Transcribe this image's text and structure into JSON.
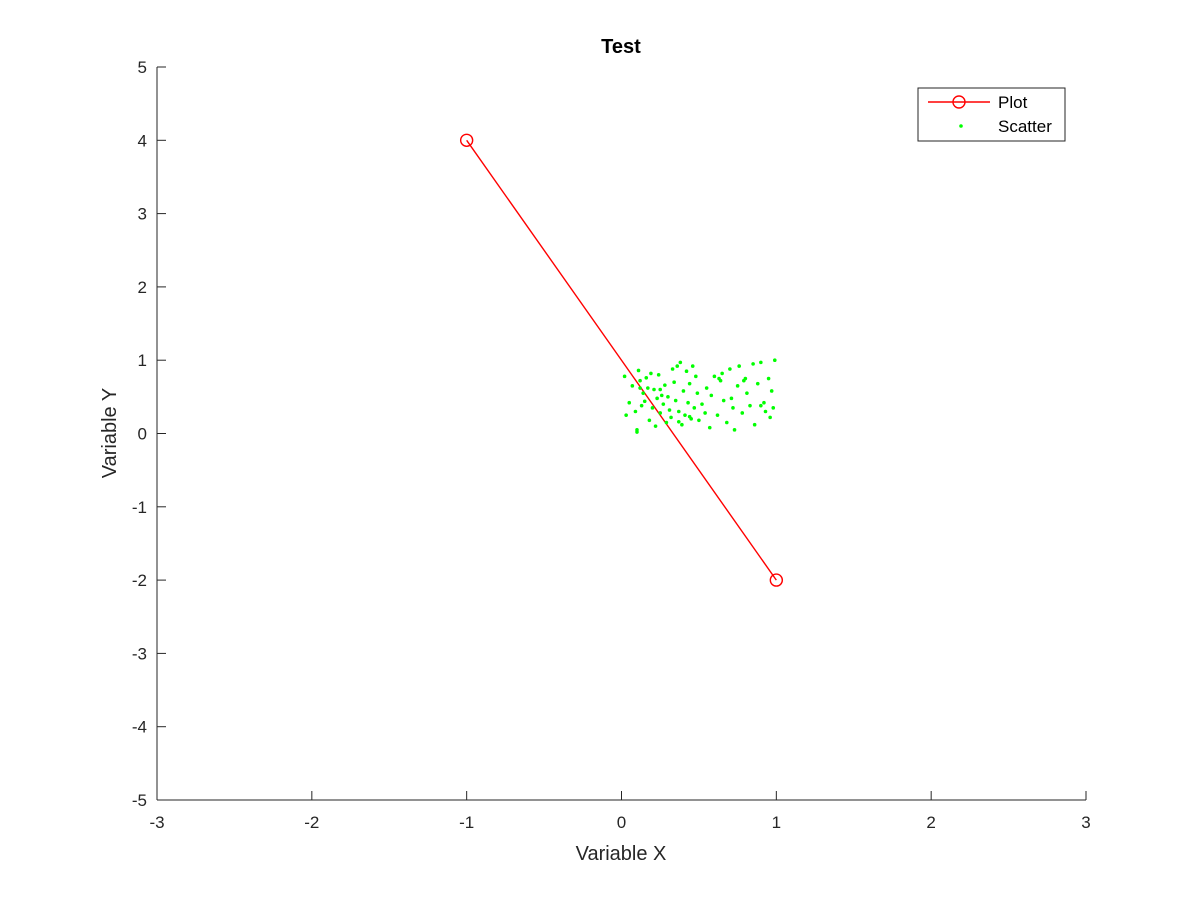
{
  "chart_data": {
    "type": "line",
    "title": "Test",
    "xlabel": "Variable X",
    "ylabel": "Variable Y",
    "xlim": [
      -3,
      3
    ],
    "ylim": [
      -5,
      5
    ],
    "xticks": [
      -3,
      -2,
      -1,
      0,
      1,
      2,
      3
    ],
    "yticks": [
      -5,
      -4,
      -3,
      -2,
      -1,
      0,
      1,
      2,
      3,
      4,
      5
    ],
    "xtick_labels": [
      "-3",
      "-2",
      "-1",
      "0",
      "1",
      "2",
      "3"
    ],
    "ytick_labels": [
      "-5",
      "-4",
      "-3",
      "-2",
      "-1",
      "0",
      "1",
      "2",
      "3",
      "4",
      "5"
    ],
    "grid": false,
    "legend_position": "top-right",
    "series": [
      {
        "name": "Plot",
        "kind": "line",
        "marker": "circle",
        "color": "#ff0000",
        "x": [
          -1,
          1
        ],
        "y": [
          4,
          -2
        ]
      },
      {
        "name": "Scatter",
        "kind": "scatter",
        "marker": "dot",
        "color": "#00ff00",
        "x": [
          0.02,
          0.03,
          0.05,
          0.07,
          0.09,
          0.1,
          0.1,
          0.11,
          0.12,
          0.13,
          0.14,
          0.15,
          0.16,
          0.17,
          0.18,
          0.19,
          0.2,
          0.21,
          0.22,
          0.23,
          0.24,
          0.25,
          0.26,
          0.27,
          0.28,
          0.29,
          0.3,
          0.31,
          0.32,
          0.33,
          0.34,
          0.35,
          0.36,
          0.37,
          0.38,
          0.39,
          0.4,
          0.41,
          0.42,
          0.43,
          0.44,
          0.45,
          0.46,
          0.47,
          0.48,
          0.49,
          0.5,
          0.52,
          0.54,
          0.55,
          0.57,
          0.6,
          0.62,
          0.64,
          0.65,
          0.66,
          0.68,
          0.7,
          0.72,
          0.73,
          0.75,
          0.76,
          0.78,
          0.8,
          0.81,
          0.83,
          0.85,
          0.86,
          0.88,
          0.9,
          0.92,
          0.93,
          0.95,
          0.96,
          0.97,
          0.98,
          0.99,
          0.12,
          0.25,
          0.37,
          0.44,
          0.58,
          0.63,
          0.71,
          0.79,
          0.9
        ],
        "y": [
          0.78,
          0.25,
          0.42,
          0.65,
          0.3,
          0.02,
          0.05,
          0.86,
          0.72,
          0.38,
          0.55,
          0.44,
          0.76,
          0.62,
          0.18,
          0.82,
          0.35,
          0.6,
          0.1,
          0.48,
          0.8,
          0.28,
          0.52,
          0.4,
          0.66,
          0.15,
          0.5,
          0.32,
          0.22,
          0.88,
          0.7,
          0.45,
          0.92,
          0.3,
          0.97,
          0.12,
          0.58,
          0.25,
          0.85,
          0.42,
          0.68,
          0.2,
          0.92,
          0.35,
          0.78,
          0.55,
          0.18,
          0.4,
          0.28,
          0.62,
          0.08,
          0.78,
          0.25,
          0.72,
          0.82,
          0.45,
          0.15,
          0.88,
          0.35,
          0.05,
          0.65,
          0.92,
          0.28,
          0.75,
          0.55,
          0.38,
          0.95,
          0.12,
          0.68,
          0.97,
          0.42,
          0.3,
          0.75,
          0.22,
          0.58,
          0.35,
          1.0,
          0.62,
          0.6,
          0.16,
          0.23,
          0.52,
          0.75,
          0.48,
          0.72,
          0.38
        ]
      }
    ]
  }
}
